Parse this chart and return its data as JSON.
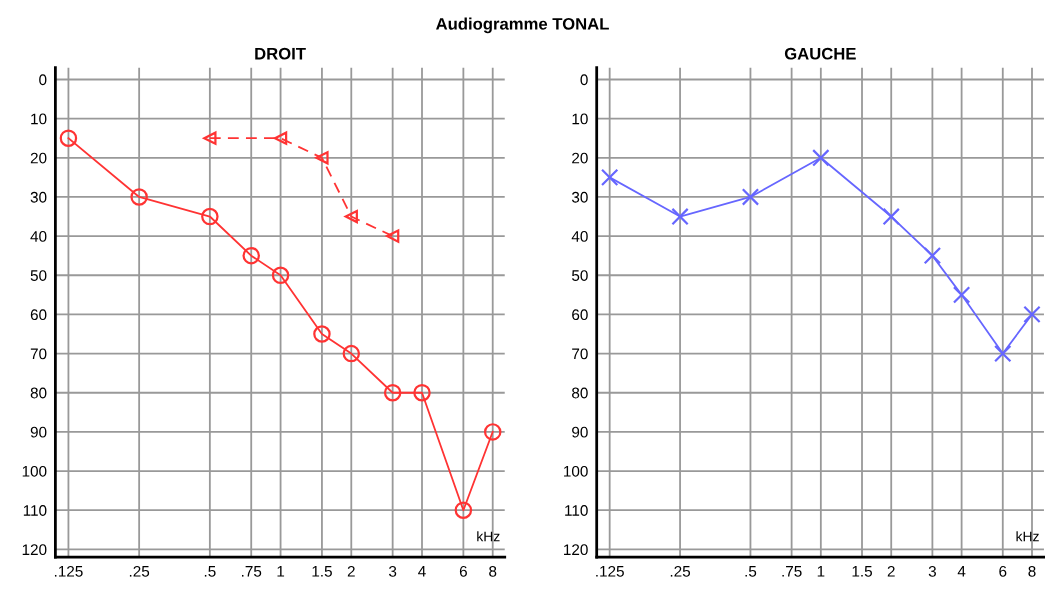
{
  "chart_data": [
    {
      "type": "line",
      "title": "DROIT",
      "subtitle": "Audiogramme TONAL",
      "annotations": [
        "kHz"
      ],
      "log": "x",
      "grid": true,
      "tick_labels": true,
      "xlim": [
        0.11,
        9
      ],
      "xticks": [
        {
          "value": 0.125,
          "label": ".125"
        },
        {
          "value": 0.25,
          "label": ".25"
        },
        {
          "value": 0.5,
          "label": ".5"
        },
        {
          "value": 0.75,
          "label": ".75"
        },
        1,
        1.5,
        2,
        3,
        4,
        6,
        8
      ],
      "ylim": [
        122,
        -3
      ],
      "yticks": [
        0,
        10,
        20,
        30,
        40,
        50,
        60,
        70,
        80,
        90,
        100,
        110,
        120
      ],
      "series": [
        {
          "color": "#ff3333",
          "marker": "circle",
          "line_style": "solid",
          "x": [
            0.125,
            0.25,
            0.5,
            0.75,
            1,
            1.5,
            2,
            3,
            4,
            6,
            8
          ],
          "values": [
            15,
            30,
            35,
            45,
            50,
            65,
            70,
            80,
            80,
            110,
            90
          ]
        },
        {
          "color": "#ff3333",
          "marker": "triangle",
          "line_style": "dashed",
          "x": [
            0.5,
            1,
            1.5,
            2,
            3
          ],
          "values": [
            15,
            15,
            20,
            35,
            40
          ]
        }
      ]
    },
    {
      "type": "line",
      "title": "GAUCHE",
      "annotations": [
        "kHz"
      ],
      "log": "x",
      "grid": true,
      "xlim": [
        0.11,
        9
      ],
      "xticks": [
        {
          "value": 0.125,
          "label": ".125"
        },
        {
          "value": 0.25,
          "label": ".25"
        },
        {
          "value": 0.5,
          "label": ".5"
        },
        {
          "value": 0.75,
          "label": ".75"
        },
        1,
        1.5,
        2,
        3,
        4,
        6,
        8
      ],
      "ylim": [
        122,
        -3
      ],
      "yticks": [
        0,
        10,
        20,
        30,
        40,
        50,
        60,
        70,
        80,
        90,
        100,
        110,
        120
      ],
      "series": [
        {
          "color": "#6666ff",
          "marker": "cross",
          "line_style": "solid",
          "x": [
            0.125,
            0.25,
            0.5,
            1,
            2,
            3,
            4,
            6,
            8
          ],
          "values": [
            25,
            35,
            30,
            20,
            35,
            45,
            55,
            70,
            60
          ]
        }
      ]
    }
  ]
}
